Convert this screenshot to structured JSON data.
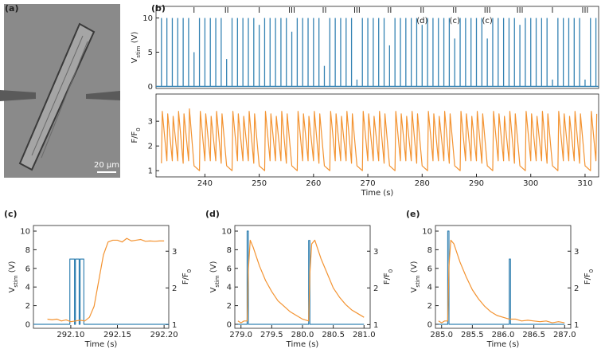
{
  "image_panel": {
    "label": "(a)",
    "scale_bar": "20 μm"
  },
  "chart_data": [
    {
      "type": "stem",
      "label": "(b)",
      "ylabel": [
        "V",
        "stim",
        " (V)"
      ],
      "xlim": [
        231,
        312.5
      ],
      "ylim": [
        -0.3,
        11.7
      ],
      "yticks": [
        0,
        5,
        10
      ],
      "annotations": [
        {
          "x": 238,
          "text": "I"
        },
        {
          "x": 244,
          "text": "II"
        },
        {
          "x": 250,
          "text": "I"
        },
        {
          "x": 256,
          "text": "III"
        },
        {
          "x": 262,
          "text": "II"
        },
        {
          "x": 268,
          "text": "III"
        },
        {
          "x": 274,
          "text": "II"
        },
        {
          "x": 280,
          "text": "II"
        },
        {
          "x": 286,
          "text": "II"
        },
        {
          "x": 292,
          "text": "III"
        },
        {
          "x": 298,
          "text": "III"
        },
        {
          "x": 304,
          "text": "I"
        },
        {
          "x": 310,
          "text": "III"
        }
      ],
      "sub_annotations": [
        {
          "x": 280,
          "text": "(d)"
        },
        {
          "x": 286,
          "text": "(c)"
        },
        {
          "x": 292,
          "text": "(c)"
        }
      ],
      "series": [
        {
          "color": "#3583b3",
          "x": [
            232,
            233,
            234,
            235,
            236,
            237,
            238,
            239,
            240,
            241,
            242,
            243,
            244,
            245,
            246,
            247,
            248,
            249,
            250,
            251,
            252,
            253,
            254,
            255,
            256,
            257,
            258,
            259,
            260,
            261,
            262,
            263,
            264,
            265,
            266,
            267,
            268,
            269,
            270,
            271,
            272,
            273,
            274,
            275,
            276,
            277,
            278,
            279,
            280,
            281,
            282,
            283,
            284,
            285,
            286,
            287,
            288,
            289,
            290,
            291,
            292,
            293,
            294,
            295,
            296,
            297,
            298,
            299,
            300,
            301,
            302,
            303,
            304,
            305,
            306,
            307,
            308,
            309,
            310,
            311,
            312
          ],
          "values": [
            10,
            10,
            10,
            10,
            10,
            10,
            5,
            10,
            10,
            10,
            10,
            10,
            4,
            10,
            10,
            10,
            10,
            10,
            9,
            10,
            10,
            10,
            10,
            10,
            8,
            10,
            10,
            10,
            10,
            10,
            3,
            10,
            10,
            10,
            10,
            10,
            1,
            10,
            10,
            10,
            10,
            10,
            6,
            10,
            10,
            10,
            10,
            10,
            9,
            10,
            10,
            10,
            10,
            10,
            7,
            10,
            10,
            10,
            10,
            10,
            7,
            10,
            10,
            10,
            10,
            10,
            9,
            10,
            10,
            10,
            10,
            10,
            1,
            10,
            10,
            10,
            10,
            10,
            1,
            10,
            10
          ]
        }
      ]
    },
    {
      "type": "line",
      "xlabel": "Time (s)",
      "ylabel": [
        "F/F",
        "0",
        ""
      ],
      "xlim": [
        231,
        312.5
      ],
      "xticks": [
        240,
        250,
        260,
        270,
        280,
        290,
        300,
        310
      ],
      "ylim": [
        0.75,
        4.1
      ],
      "yticks": [
        1,
        2,
        3
      ],
      "series": [
        {
          "color": "#f39331",
          "x": [
            232,
            232.15,
            233,
            233.15,
            234,
            234.15,
            235,
            235.15,
            236,
            236.15,
            237,
            237.15,
            238,
            239,
            239.15,
            240,
            240.15,
            241,
            241.15,
            242,
            242.15,
            243,
            243.15,
            244,
            245,
            245.15,
            246,
            246.15,
            247,
            247.15,
            248,
            248.15,
            249,
            249.15,
            250,
            251,
            251.15,
            252,
            252.15,
            253,
            253.15,
            254,
            254.15,
            255,
            255.15,
            256,
            257,
            257.15,
            258,
            258.15,
            259,
            259.15,
            260,
            260.15,
            261,
            261.15,
            262,
            263,
            263.15,
            264,
            264.15,
            265,
            265.15,
            266,
            266.15,
            267,
            267.15,
            268,
            269,
            269.15,
            270,
            270.15,
            271,
            271.15,
            272,
            272.15,
            273,
            273.15,
            274,
            275,
            275.15,
            276,
            276.15,
            277,
            277.15,
            278,
            278.15,
            279,
            279.15,
            280,
            281,
            281.15,
            282,
            282.15,
            283,
            283.15,
            284,
            284.15,
            285,
            285.15,
            286,
            287,
            287.15,
            288,
            288.15,
            289,
            289.15,
            290,
            290.15,
            291,
            291.15,
            292,
            293,
            293.15,
            294,
            294.15,
            295,
            295.15,
            296,
            296.15,
            297,
            297.15,
            298,
            299,
            299.15,
            300,
            300.15,
            301,
            301.15,
            302,
            302.15,
            303,
            303.15,
            304,
            305,
            305.15,
            306,
            306.15,
            307,
            307.15,
            308,
            308.15,
            309,
            309.15,
            310,
            311,
            311.15,
            312,
            312.15
          ],
          "values": [
            1.3,
            3.4,
            1.4,
            3.3,
            1.4,
            3.2,
            1.4,
            3.4,
            1.3,
            3.3,
            1.4,
            3.5,
            1.2,
            1.0,
            3.4,
            1.4,
            3.3,
            1.4,
            3.2,
            1.4,
            3.4,
            1.3,
            3.3,
            1.2,
            1.0,
            3.4,
            1.4,
            3.3,
            1.4,
            3.2,
            1.4,
            3.4,
            1.3,
            3.3,
            1.2,
            1.0,
            3.4,
            1.4,
            3.3,
            1.4,
            3.2,
            1.4,
            3.4,
            1.3,
            3.3,
            1.2,
            1.0,
            3.4,
            1.4,
            3.3,
            1.4,
            3.2,
            1.4,
            3.4,
            1.3,
            3.3,
            1.2,
            1.0,
            3.4,
            1.4,
            3.3,
            1.4,
            3.2,
            1.4,
            3.4,
            1.3,
            3.3,
            1.2,
            1.0,
            3.4,
            1.4,
            3.3,
            1.4,
            3.2,
            1.4,
            3.4,
            1.3,
            3.3,
            1.2,
            1.0,
            3.4,
            1.4,
            3.3,
            1.4,
            3.2,
            1.4,
            3.4,
            1.3,
            3.3,
            1.2,
            1.0,
            3.4,
            1.4,
            3.3,
            1.4,
            3.2,
            1.4,
            3.4,
            1.3,
            3.3,
            1.2,
            1.0,
            3.4,
            1.4,
            3.3,
            1.4,
            3.2,
            1.4,
            3.4,
            1.3,
            3.3,
            1.2,
            1.0,
            3.4,
            1.4,
            3.3,
            1.4,
            3.2,
            1.4,
            3.4,
            1.3,
            3.3,
            1.2,
            1.0,
            3.4,
            1.4,
            3.3,
            1.4,
            3.2,
            1.4,
            3.4,
            1.3,
            3.3,
            1.2,
            1.0,
            3.4,
            1.4,
            3.3,
            1.4,
            3.2,
            1.4,
            3.4,
            1.3,
            3.3,
            1.2,
            1.0,
            3.4,
            1.4,
            3.3
          ]
        }
      ]
    },
    {
      "type": "line",
      "label": "(c)",
      "xlabel": "Time (s)",
      "ylabel": [
        "V",
        "stim",
        " (V)"
      ],
      "y2label": [
        "F/F",
        "0",
        ""
      ],
      "xlim": [
        292.06,
        292.205
      ],
      "xticks": [
        {
          "value": 292.1,
          "label": "292.10"
        },
        292.15,
        {
          "value": 292.2,
          "label": "292.20"
        }
      ],
      "ylim": [
        -0.43,
        10.6
      ],
      "yticks": [
        0,
        2,
        4,
        6,
        8,
        10
      ],
      "y2lim": [
        0.9,
        3.7
      ],
      "y2ticks": [
        1,
        2,
        3
      ],
      "series": [
        {
          "color": "#3583b3",
          "x": [
            292.06,
            292.099,
            292.099,
            292.104,
            292.104,
            292.105,
            292.105,
            292.109,
            292.109,
            292.11,
            292.11,
            292.114,
            292.114,
            292.205
          ],
          "values": [
            0,
            0,
            7,
            7,
            0,
            0,
            7,
            7,
            0,
            0,
            7,
            7,
            0,
            0
          ]
        },
        {
          "color": "#f39331",
          "axis": "y2",
          "x": [
            292.075,
            292.08,
            292.085,
            292.09,
            292.095,
            292.1,
            292.105,
            292.11,
            292.115,
            292.12,
            292.125,
            292.13,
            292.135,
            292.14,
            292.145,
            292.15,
            292.155,
            292.16,
            292.165,
            292.17,
            292.175,
            292.18,
            292.185,
            292.19,
            292.195,
            292.2
          ],
          "values": [
            1.15,
            1.13,
            1.15,
            1.1,
            1.13,
            1.08,
            1.1,
            1.12,
            1.1,
            1.2,
            1.5,
            2.2,
            2.9,
            3.25,
            3.3,
            3.3,
            3.25,
            3.35,
            3.28,
            3.3,
            3.32,
            3.27,
            3.28,
            3.27,
            3.28,
            3.28
          ]
        }
      ]
    },
    {
      "type": "line",
      "label": "(d)",
      "xlabel": "Time (s)",
      "ylabel": [
        "V",
        "stim",
        " (V)"
      ],
      "y2label": [
        "F/F",
        "0",
        ""
      ],
      "xlim": [
        278.9,
        281.1
      ],
      "xticks": [
        {
          "value": 279,
          "label": "279.0"
        },
        279.5,
        {
          "value": 280,
          "label": "280.0"
        },
        280.5,
        {
          "value": 281,
          "label": "281.0"
        }
      ],
      "ylim": [
        -0.43,
        10.6
      ],
      "yticks": [
        0,
        2,
        4,
        6,
        8,
        10
      ],
      "y2lim": [
        0.9,
        3.7
      ],
      "y2ticks": [
        1,
        2,
        3
      ],
      "series": [
        {
          "color": "#3583b3",
          "x": [
            278.95,
            279.1,
            279.1,
            279.12,
            279.12,
            280.1,
            280.1,
            280.12,
            280.12,
            281.0
          ],
          "values": [
            0,
            0,
            10,
            10,
            0,
            0,
            9,
            9,
            0,
            0
          ]
        },
        {
          "color": "#f39331",
          "axis": "y2",
          "x": [
            278.95,
            279.0,
            279.05,
            279.1,
            279.12,
            279.15,
            279.2,
            279.3,
            279.4,
            279.5,
            279.6,
            279.7,
            279.8,
            279.9,
            280.0,
            280.1,
            280.12,
            280.15,
            280.2,
            280.3,
            280.4,
            280.5,
            280.6,
            280.7,
            280.8,
            280.9,
            281.0
          ],
          "values": [
            1.1,
            1.05,
            1.1,
            1.1,
            2.5,
            3.3,
            3.1,
            2.6,
            2.2,
            1.9,
            1.65,
            1.5,
            1.35,
            1.25,
            1.15,
            1.1,
            2.4,
            3.2,
            3.3,
            2.8,
            2.4,
            2.0,
            1.75,
            1.55,
            1.4,
            1.3,
            1.2
          ]
        }
      ]
    },
    {
      "type": "line",
      "label": "(e)",
      "xlabel": "Time (s)",
      "ylabel": [
        "V",
        "stim",
        " (V)"
      ],
      "y2label": [
        "F/F",
        "0",
        ""
      ],
      "xlim": [
        284.9,
        287.1
      ],
      "xticks": [
        {
          "value": 285,
          "label": "285.0"
        },
        285.5,
        {
          "value": 286,
          "label": "286.0"
        },
        286.5,
        {
          "value": 287,
          "label": "287.0"
        }
      ],
      "ylim": [
        -0.43,
        10.6
      ],
      "yticks": [
        0,
        2,
        4,
        6,
        8,
        10
      ],
      "y2lim": [
        0.9,
        3.7
      ],
      "y2ticks": [
        1,
        2,
        3
      ],
      "series": [
        {
          "color": "#3583b3",
          "x": [
            284.95,
            285.1,
            285.1,
            285.12,
            285.12,
            286.1,
            286.1,
            286.12,
            286.12,
            287.0
          ],
          "values": [
            0,
            0,
            10,
            10,
            0,
            0,
            7,
            7,
            0,
            0
          ]
        },
        {
          "color": "#f39331",
          "axis": "y2",
          "x": [
            284.95,
            285.0,
            285.05,
            285.1,
            285.12,
            285.15,
            285.2,
            285.3,
            285.4,
            285.5,
            285.6,
            285.7,
            285.8,
            285.9,
            286.0,
            286.1,
            286.2,
            286.3,
            286.4,
            286.5,
            286.6,
            286.7,
            286.8,
            286.9,
            287.0
          ],
          "values": [
            1.1,
            1.05,
            1.1,
            1.1,
            2.6,
            3.3,
            3.2,
            2.7,
            2.3,
            1.95,
            1.7,
            1.5,
            1.35,
            1.25,
            1.2,
            1.15,
            1.15,
            1.1,
            1.12,
            1.1,
            1.08,
            1.1,
            1.05,
            1.08,
            1.05
          ]
        }
      ]
    }
  ]
}
